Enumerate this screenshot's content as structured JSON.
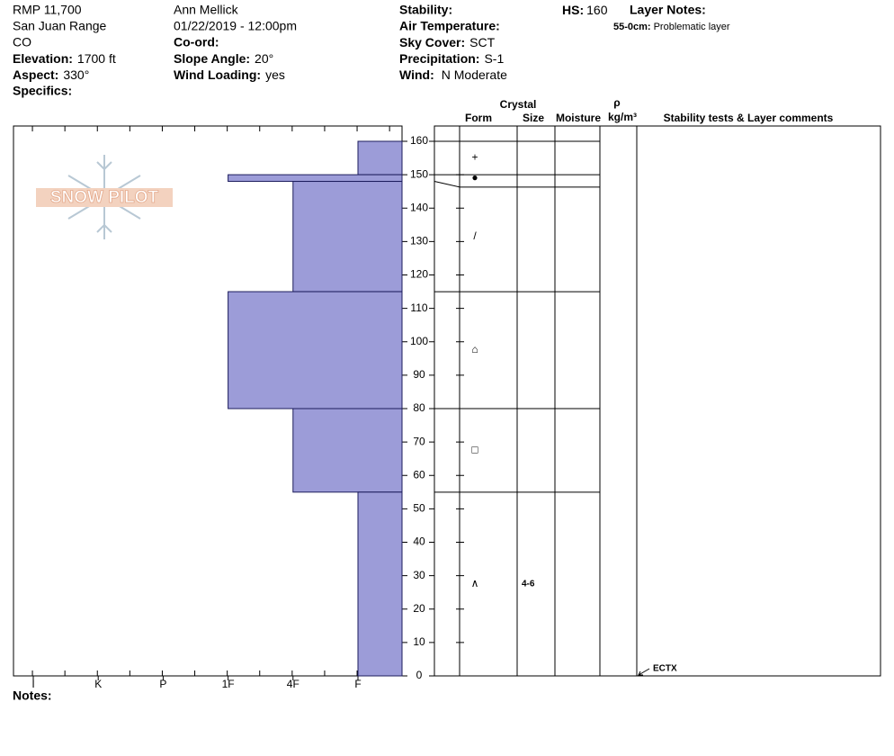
{
  "header": {
    "location": "RMP 11,700",
    "range": "San Juan Range",
    "state": "CO",
    "elevation": {
      "label": "Elevation:",
      "value": "1700 ft"
    },
    "aspect": {
      "label": "Aspect:",
      "value": "330°"
    },
    "specifics": "Specifics:",
    "observer": "Ann Mellick",
    "datetime": "01/22/2019 - 12:00pm",
    "coord": "Co-ord:",
    "slope_angle": {
      "label": "Slope Angle:",
      "value": "20°"
    },
    "wind_loading": {
      "label": "Wind Loading:",
      "value": "yes"
    },
    "stability": "Stability:",
    "air_temperature": "Air Temperature:",
    "sky_cover": {
      "label": "Sky Cover:",
      "value": "SCT"
    },
    "precipitation": {
      "label": "Precipitation:",
      "value": "S-1"
    },
    "wind": {
      "label": "Wind:",
      "value": "N Moderate"
    },
    "hs": {
      "label": "HS:",
      "value": 160
    },
    "layer_notes": {
      "label": "Layer Notes:",
      "range": "55-0cm:",
      "text": "Problematic layer"
    },
    "logo": "SNOW PILOT",
    "notes": "Notes:"
  },
  "chart_data": {
    "type": "snow-profile",
    "hardness_categories": [
      "I",
      "K",
      "P",
      "1F",
      "4F",
      "F"
    ],
    "ylim": [
      0,
      160
    ],
    "yticks": [
      0,
      10,
      20,
      30,
      40,
      50,
      60,
      70,
      80,
      90,
      100,
      110,
      120,
      130,
      140,
      150,
      160
    ],
    "color": "#9c9cd8",
    "columns": {
      "crystal": "Crystal",
      "form": "Form",
      "size": "Size",
      "moisture": "Moisture",
      "rho": "ρ",
      "density": "kg/m³",
      "comments": "Stability tests & Layer comments"
    },
    "layers": [
      {
        "top": 160,
        "bottom": 150,
        "hardness": "F",
        "form": "+"
      },
      {
        "top": 150,
        "bottom": 148,
        "hardness": "1F",
        "form": "●"
      },
      {
        "top": 148,
        "bottom": 115,
        "hardness": "4F",
        "form": "/"
      },
      {
        "top": 115,
        "bottom": 80,
        "hardness": "1F",
        "form": "⌂"
      },
      {
        "top": 80,
        "bottom": 55,
        "hardness": "4F",
        "form": "□"
      },
      {
        "top": 55,
        "bottom": 0,
        "hardness": "F",
        "form": "∧",
        "size": "4-6"
      }
    ],
    "stability_tests": [
      {
        "depth": 0,
        "label": "ECTX"
      }
    ]
  }
}
